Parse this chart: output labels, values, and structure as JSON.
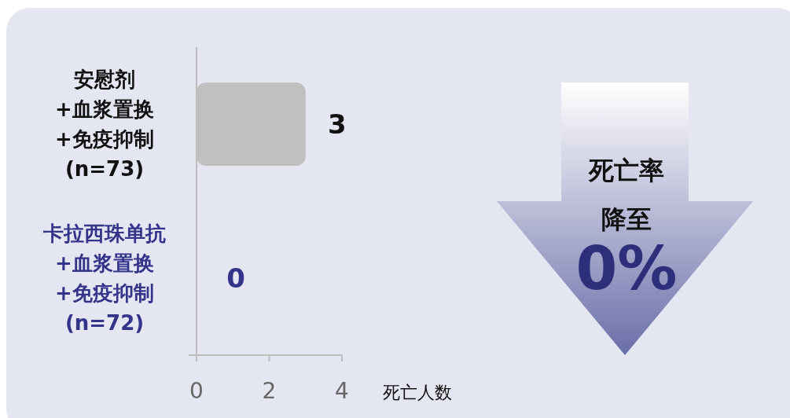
{
  "chart_data": {
    "type": "bar",
    "orientation": "horizontal",
    "categories": [
      "安慰剂\n+血浆置换\n+免疫抑制\n(n=73)",
      "卡拉西珠单抗\n+血浆置换\n+免疫抑制\n(n=72)"
    ],
    "values": [
      3,
      0
    ],
    "colors": [
      "#c0c0c0",
      "#34348a"
    ],
    "xlim": [
      0,
      4
    ],
    "xticks": [
      0,
      2,
      4
    ],
    "xlabel": "死亡人数",
    "data_labels": true,
    "annotations": [
      "死亡率",
      "降至",
      "0%"
    ]
  }
}
